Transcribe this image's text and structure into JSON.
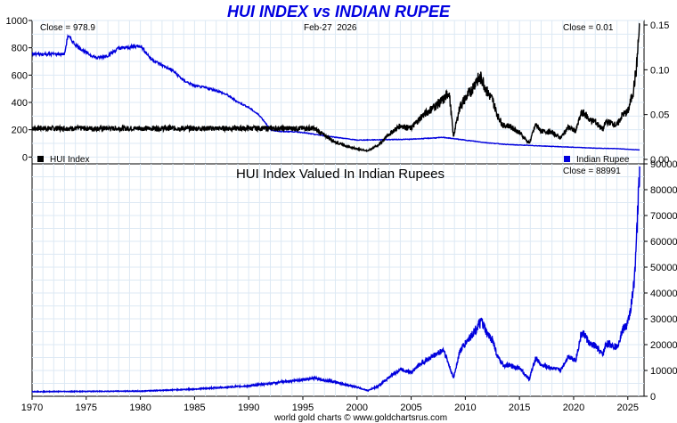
{
  "title": "HUI INDEX vs INDIAN RUPEE",
  "footer": "world gold charts © www.goldchartsrus.com",
  "colors": {
    "title": "#0000e0",
    "hui": "#000000",
    "rupee": "#0000dd",
    "grid": "#dde9f4",
    "frame": "#000000"
  },
  "chart_data": [
    {
      "type": "line",
      "panel": "top",
      "date_label": "Feb-27  2026",
      "grid": true,
      "xlim": [
        1970,
        2026.5
      ],
      "y_left": {
        "range": [
          -50,
          1000
        ],
        "ticks": [
          0,
          200,
          400,
          600,
          800,
          1000
        ]
      },
      "y_right": {
        "range": [
          -0.005,
          0.155
        ],
        "ticks": [
          "0.00",
          "0.05",
          "0.10",
          "0.15"
        ]
      },
      "series": [
        {
          "name": "HUI Index",
          "axis": "left",
          "close_label": "Close = 978.9",
          "x": [
            1970,
            1996,
            1997,
            1998,
            1999,
            2000,
            2001,
            2002,
            2003,
            2004,
            2005,
            2006,
            2007,
            2008,
            2008.5,
            2008.9,
            2009.5,
            2010,
            2010.5,
            2011,
            2011.5,
            2012,
            2012.5,
            2013,
            2013.5,
            2014,
            2015,
            2015.9,
            2016.5,
            2017,
            2018,
            2018.8,
            2019.5,
            2020.2,
            2020.7,
            2021,
            2021.5,
            2022,
            2022.7,
            2023,
            2023.5,
            2024,
            2024.5,
            2025,
            2025.5,
            2025.8,
            2026.1
          ],
          "values": [
            210,
            210,
            160,
            110,
            80,
            60,
            45,
            90,
            170,
            230,
            210,
            300,
            360,
            420,
            480,
            150,
            370,
            430,
            480,
            560,
            580,
            480,
            420,
            300,
            230,
            230,
            180,
            100,
            240,
            190,
            180,
            140,
            220,
            190,
            320,
            320,
            270,
            260,
            200,
            260,
            250,
            230,
            310,
            330,
            480,
            650,
            978.9
          ]
        },
        {
          "name": "Indian Rupee",
          "axis": "right",
          "close_label": "Close = 0.01",
          "x": [
            1970,
            1973,
            1973.3,
            1974,
            1975,
            1976,
            1977,
            1978,
            1979,
            1980,
            1981,
            1982,
            1983,
            1984,
            1985,
            1986,
            1987,
            1988,
            1989,
            1990,
            1991,
            1991.6,
            1992,
            1993,
            1994,
            1995,
            1996,
            2000,
            2005,
            2008,
            2010,
            2012,
            2014,
            2018,
            2020,
            2022,
            2024,
            2026.1
          ],
          "values": [
            0.1175,
            0.1175,
            0.138,
            0.128,
            0.119,
            0.113,
            0.116,
            0.124,
            0.125,
            0.127,
            0.112,
            0.105,
            0.099,
            0.088,
            0.082,
            0.08,
            0.077,
            0.072,
            0.064,
            0.058,
            0.049,
            0.04,
            0.033,
            0.031,
            0.031,
            0.03,
            0.028,
            0.0215,
            0.0225,
            0.0245,
            0.0215,
            0.0185,
            0.0165,
            0.0145,
            0.0135,
            0.0125,
            0.012,
            0.0105
          ]
        }
      ],
      "legend": [
        "HUI Index",
        "Indian Rupee"
      ]
    },
    {
      "type": "line",
      "panel": "bottom",
      "title": "HUI Index Valued In Indian Rupees",
      "close_label": "Close = 88991",
      "grid": true,
      "xlim": [
        1970,
        2026.5
      ],
      "ylim": [
        0,
        90000
      ],
      "y_ticks": [
        0,
        10000,
        20000,
        30000,
        40000,
        50000,
        60000,
        70000,
        80000,
        90000
      ],
      "x_ticks": [
        1970,
        1975,
        1980,
        1985,
        1990,
        1995,
        2000,
        2005,
        2010,
        2015,
        2020,
        2025
      ],
      "series": [
        {
          "name": "HUI Index Valued In Indian Rupees",
          "x": [
            1970,
            1975,
            1980,
            1985,
            1990,
            1993,
            1996,
            1998,
            2000,
            2001,
            2002,
            2003,
            2004,
            2005,
            2006,
            2007,
            2008,
            2008.9,
            2009.5,
            2010,
            2011,
            2011.5,
            2012,
            2012.5,
            2013,
            2013.5,
            2014,
            2015,
            2015.9,
            2016.5,
            2017,
            2018,
            2018.8,
            2019.5,
            2020.2,
            2020.7,
            2021,
            2021.5,
            2022,
            2022.7,
            2023,
            2023.5,
            2024,
            2024.5,
            2025,
            2025.5,
            2025.8,
            2026.1
          ],
          "values": [
            1800,
            1900,
            2000,
            2800,
            4000,
            5500,
            7000,
            5500,
            3500,
            2200,
            4000,
            7500,
            10500,
            9300,
            13000,
            15500,
            18000,
            7000,
            17500,
            20500,
            26000,
            29000,
            24000,
            22000,
            15000,
            12000,
            12000,
            11000,
            6500,
            15000,
            12000,
            11000,
            10000,
            15500,
            14000,
            24000,
            24000,
            20000,
            19500,
            16000,
            20500,
            20000,
            19000,
            25500,
            28000,
            40000,
            60000,
            88991
          ]
        }
      ]
    }
  ]
}
